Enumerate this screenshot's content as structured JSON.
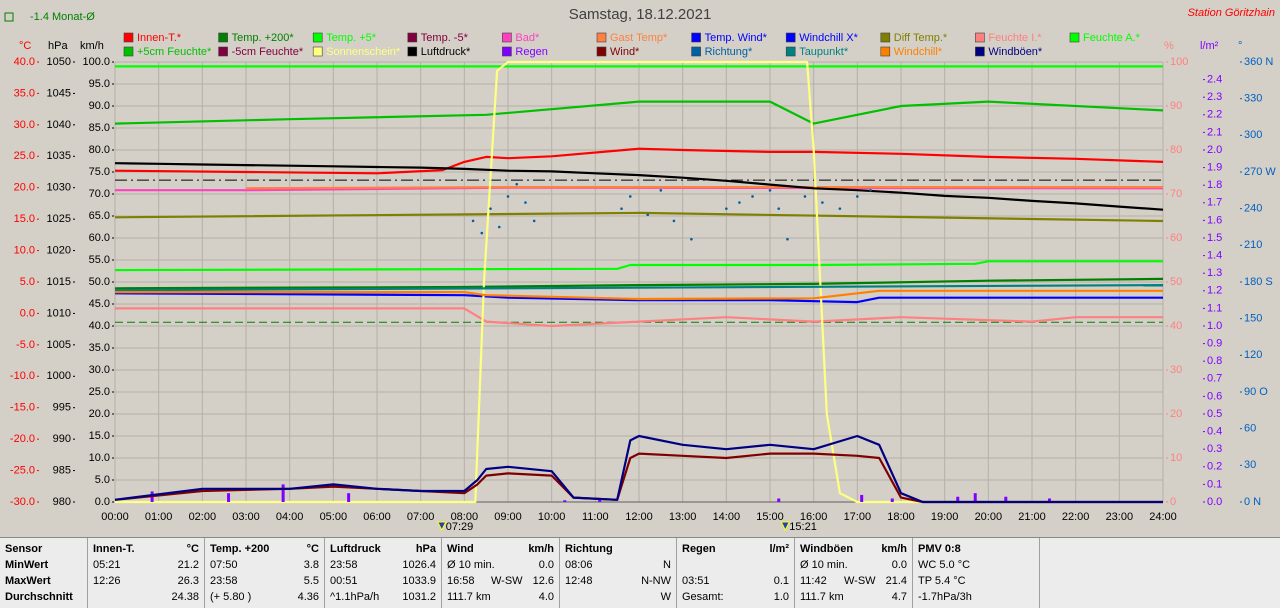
{
  "title": "Samstag, 18.12.2021",
  "station": "Station Göritzhain",
  "monthly_avg_label": "-1.4 Monat-Ø",
  "chart_data": {
    "type": "line",
    "grid": true,
    "grid_axis": 2,
    "y_axes": [
      {
        "label": "°C",
        "color": "#ff0000",
        "lim": [
          -30,
          40
        ],
        "ticks": [
          {
            "value": -30,
            "label": "-30.0"
          },
          {
            "value": -25,
            "label": "-25.0"
          },
          {
            "value": -20,
            "label": "-20.0"
          },
          {
            "value": -15,
            "label": "-15.0"
          },
          {
            "value": -10,
            "label": "-10.0"
          },
          {
            "value": -5,
            "label": "-5.0"
          },
          {
            "value": 0,
            "label": "0.0"
          },
          {
            "value": 5,
            "label": "5.0"
          },
          {
            "value": 10,
            "label": "10.0"
          },
          {
            "value": 15,
            "label": "15.0"
          },
          {
            "value": 20,
            "label": "20.0"
          },
          {
            "value": 25,
            "label": "25.0"
          },
          {
            "value": 30,
            "label": "30.0"
          },
          {
            "value": 35,
            "label": "35.0"
          },
          {
            "value": 40,
            "label": "40.0"
          }
        ]
      },
      {
        "label": "hPa",
        "color": "#000000",
        "lim": [
          980,
          1050
        ],
        "ticks": [
          980,
          985,
          990,
          995,
          1000,
          1005,
          1010,
          1015,
          1020,
          1025,
          1030,
          1035,
          1040,
          1045,
          1050
        ]
      },
      {
        "label": "km/h",
        "color": "#000000",
        "lim": [
          0,
          100
        ],
        "ticks": [
          {
            "value": 0,
            "label": "0.0"
          },
          {
            "value": 5,
            "label": "5.0"
          },
          {
            "value": 10,
            "label": "10.0"
          },
          {
            "value": 15,
            "label": "15.0"
          },
          {
            "value": 20,
            "label": "20.0"
          },
          {
            "value": 25,
            "label": "25.0"
          },
          {
            "value": 30,
            "label": "30.0"
          },
          {
            "value": 35,
            "label": "35.0"
          },
          {
            "value": 40,
            "label": "40.0"
          },
          {
            "value": 45,
            "label": "45.0"
          },
          {
            "value": 50,
            "label": "50.0"
          },
          {
            "value": 55,
            "label": "55.0"
          },
          {
            "value": 60,
            "label": "60.0"
          },
          {
            "value": 65,
            "label": "65.0"
          },
          {
            "value": 70,
            "label": "70.0"
          },
          {
            "value": 75,
            "label": "75.0"
          },
          {
            "value": 80,
            "label": "80.0"
          },
          {
            "value": 85,
            "label": "85.0"
          },
          {
            "value": 90,
            "label": "90.0"
          },
          {
            "value": 95,
            "label": "95.0"
          },
          {
            "value": 100,
            "label": "100.0"
          }
        ]
      },
      {
        "label": "%",
        "color": "#ff8080",
        "lim": [
          0,
          100
        ],
        "ticks": [
          0,
          10,
          20,
          30,
          40,
          50,
          60,
          70,
          80,
          90,
          100
        ]
      },
      {
        "label": "l/m²",
        "color": "#8000ff",
        "lim": [
          0,
          2.5
        ],
        "ticks": [
          {
            "value": 0,
            "label": "0.0"
          },
          0.1,
          0.2,
          0.3,
          0.4,
          0.5,
          0.6,
          0.7,
          0.8,
          0.9,
          {
            "value": 1,
            "label": "1.0"
          },
          1.1,
          1.2,
          1.3,
          1.4,
          1.5,
          1.6,
          1.7,
          1.8,
          1.9,
          {
            "value": 2,
            "label": "2.0"
          },
          2.1,
          2.2,
          2.3,
          2.4
        ]
      },
      {
        "label": "°",
        "color": "#0060c0",
        "lim": [
          0,
          360
        ],
        "ticks": [
          {
            "value": 0,
            "label": "0 N"
          },
          30,
          60,
          {
            "value": 90,
            "label": "90 O"
          },
          120,
          150,
          {
            "value": 180,
            "label": "180 S"
          },
          210,
          240,
          {
            "value": 270,
            "label": "270 W"
          },
          300,
          330,
          {
            "value": 360,
            "label": "360 N"
          }
        ]
      }
    ],
    "xlim": [
      0,
      24
    ],
    "xticks": [
      {
        "value": 0,
        "label": "00:00"
      },
      {
        "value": 1,
        "label": "01:00"
      },
      {
        "value": 2,
        "label": "02:00"
      },
      {
        "value": 3,
        "label": "03:00"
      },
      {
        "value": 4,
        "label": "04:00"
      },
      {
        "value": 5,
        "label": "05:00"
      },
      {
        "value": 6,
        "label": "06:00"
      },
      {
        "value": 7,
        "label": "07:00"
      },
      {
        "value": 8,
        "label": "08:00"
      },
      {
        "value": 9,
        "label": "09:00"
      },
      {
        "value": 10,
        "label": "10:00"
      },
      {
        "value": 11,
        "label": "11:00"
      },
      {
        "value": 12,
        "label": "12:00"
      },
      {
        "value": 13,
        "label": "13:00"
      },
      {
        "value": 14,
        "label": "14:00"
      },
      {
        "value": 15,
        "label": "15:00"
      },
      {
        "value": 16,
        "label": "16:00"
      },
      {
        "value": 17,
        "label": "17:00"
      },
      {
        "value": 18,
        "label": "18:00"
      },
      {
        "value": 19,
        "label": "19:00"
      },
      {
        "value": 20,
        "label": "20:00"
      },
      {
        "value": 21,
        "label": "21:00"
      },
      {
        "value": 22,
        "label": "22:00"
      },
      {
        "value": 23,
        "label": "23:00"
      },
      {
        "value": 24,
        "label": "24:00"
      }
    ],
    "annotations": [
      {
        "value": 7.4833,
        "label": "07:29"
      },
      {
        "value": 15.35,
        "label": "15:21"
      }
    ],
    "reference_lines": [
      {
        "axis": 0,
        "value": -1.4,
        "color": "#008000",
        "style": "dashed"
      },
      {
        "axis": 1,
        "value": 1031.2,
        "color": "#000000",
        "style": "dash-dot"
      }
    ],
    "series": [
      {
        "name": "Innen-T.*",
        "color": "#ff0000",
        "axis": 0,
        "style": "line",
        "x": [
          0,
          3,
          6,
          7.5,
          8,
          8.5,
          9,
          10,
          12,
          13,
          15,
          16,
          18,
          20,
          22,
          24
        ],
        "values": [
          22.7,
          22.5,
          22.3,
          22.8,
          24.1,
          24.9,
          24.7,
          25.0,
          26.2,
          26.0,
          25.7,
          25.7,
          25.4,
          24.9,
          24.6,
          24.1
        ]
      },
      {
        "name": "Temp. +200*",
        "color": "#008000",
        "axis": 0,
        "style": "line",
        "x": [
          0,
          8,
          12,
          16,
          20,
          24
        ],
        "values": [
          4.0,
          4.2,
          4.5,
          4.7,
          5.2,
          5.5
        ]
      },
      {
        "name": "Temp. +5*",
        "color": "#00ff00",
        "axis": 0,
        "style": "line",
        "x": [
          0,
          11.5,
          11.8,
          16,
          19.7,
          20,
          24
        ],
        "values": [
          6.9,
          7.1,
          7.7,
          7.7,
          7.9,
          8.3,
          8.3
        ]
      },
      {
        "name": "Temp. -5*",
        "color": "#800040",
        "axis": 0,
        "style": "line",
        "x": [],
        "values": []
      },
      {
        "name": "Bad*",
        "color": "#ff40c0",
        "axis": 0,
        "style": "line",
        "x": [
          0,
          3,
          9,
          24
        ],
        "values": [
          19.6,
          19.6,
          20.0,
          19.9
        ]
      },
      {
        "name": "Gast Temp*",
        "color": "#ff8040",
        "axis": 0,
        "style": "line",
        "x": [
          3,
          9,
          24
        ],
        "values": [
          19.9,
          20.1,
          20.1
        ]
      },
      {
        "name": "Temp. Wind*",
        "color": "#0000ff",
        "axis": 0,
        "style": "line",
        "x": [
          0,
          8,
          9,
          12,
          15,
          17,
          17.5,
          24
        ],
        "values": [
          3.2,
          2.9,
          2.5,
          2.1,
          2.1,
          1.8,
          2.5,
          2.5
        ]
      },
      {
        "name": "Windchill X*",
        "color": "#0000ff",
        "axis": 0,
        "style": "line",
        "x": [],
        "values": []
      },
      {
        "name": "Diff Temp.*",
        "color": "#808000",
        "axis": 0,
        "style": "line",
        "x": [
          0,
          12,
          24
        ],
        "values": [
          15.3,
          16.0,
          14.7
        ]
      },
      {
        "name": "Feuchte I.*",
        "color": "#ff8080",
        "axis": 3,
        "style": "line",
        "x": [
          0,
          8,
          8.5,
          10,
          12,
          14,
          16,
          18,
          21,
          22,
          24
        ],
        "values": [
          44,
          44,
          41,
          40,
          41,
          42,
          41,
          42,
          41,
          42,
          42
        ]
      },
      {
        "name": "Feuchte A.*",
        "color": "#00ff00",
        "axis": 3,
        "style": "line",
        "x": [
          0,
          24
        ],
        "values": [
          99,
          99
        ]
      },
      {
        "name": "+5cm Feuchte*",
        "color": "#00c000",
        "axis": 3,
        "style": "line",
        "x": [
          0,
          4,
          8.5,
          12,
          15,
          16,
          18,
          20,
          24
        ],
        "values": [
          86,
          87,
          88,
          91,
          91,
          86,
          90,
          91,
          89
        ]
      },
      {
        "name": "-5cm Feuchte*",
        "color": "#800040",
        "axis": 3,
        "style": "line",
        "x": [],
        "values": []
      },
      {
        "name": "Sonnenschein*",
        "color": "#ffff80",
        "axis": 3,
        "style": "line",
        "x": [
          0,
          8.25,
          8.45,
          8.75,
          9,
          15.85,
          16,
          16.3,
          16.6,
          17,
          24
        ],
        "values": [
          0,
          0,
          50,
          98,
          100,
          100,
          80,
          20,
          2,
          0,
          0
        ]
      },
      {
        "name": "Luftdruck*",
        "color": "#000000",
        "axis": 1,
        "style": "line",
        "x": [
          0,
          1,
          2,
          3,
          4,
          5,
          6,
          7,
          8,
          9,
          10,
          11,
          12,
          13,
          14,
          15,
          16,
          17,
          18,
          19,
          20,
          21,
          22,
          23,
          24
        ],
        "values": [
          1033.9,
          1033.8,
          1033.7,
          1033.6,
          1033.5,
          1033.4,
          1033.3,
          1033.2,
          1033.0,
          1032.7,
          1032.6,
          1032.3,
          1032.0,
          1031.6,
          1031.1,
          1030.5,
          1029.9,
          1029.6,
          1029.2,
          1028.7,
          1028.4,
          1027.9,
          1027.5,
          1027.0,
          1026.5
        ]
      },
      {
        "name": "Regen",
        "color": "#8000ff",
        "axis": 4,
        "style": "bars",
        "x": [
          0.85,
          2.6,
          3.85,
          5.35,
          10.3,
          11.1,
          15.2,
          17.1,
          17.8,
          19.3,
          19.7,
          20.4,
          21.4
        ],
        "values": [
          0.06,
          0.05,
          0.1,
          0.05,
          0.01,
          0.02,
          0.02,
          0.04,
          0.02,
          0.03,
          0.05,
          0.03,
          0.02
        ]
      },
      {
        "name": "Wind*",
        "color": "#800000",
        "axis": 2,
        "style": "line",
        "x": [
          0,
          2,
          4,
          5,
          6,
          7,
          8,
          8.3,
          8.5,
          9,
          10,
          10.5,
          11.5,
          11.8,
          12,
          13,
          14,
          15,
          16,
          17,
          17.5,
          18,
          18.5,
          24
        ],
        "values": [
          0.5,
          2.5,
          3,
          3.5,
          3,
          2.5,
          2,
          4,
          6,
          6.5,
          6,
          1,
          0.5,
          10,
          11,
          10.5,
          10,
          11,
          11,
          10.5,
          10,
          1,
          0,
          0
        ]
      },
      {
        "name": "Richtung*",
        "color": "#0060a0",
        "axis": 5,
        "style": "dots",
        "x": [
          8.2,
          8.4,
          8.6,
          8.8,
          9.0,
          9.2,
          9.4,
          9.6,
          11.6,
          11.8,
          12.2,
          12.5,
          12.8,
          13.2,
          14,
          14.3,
          14.6,
          15,
          15.2,
          15.4,
          15.8,
          16.2,
          16.6,
          17,
          17.3
        ],
        "values": [
          230,
          220,
          240,
          225,
          250,
          260,
          245,
          230,
          240,
          250,
          235,
          255,
          230,
          215,
          240,
          245,
          250,
          255,
          240,
          215,
          250,
          245,
          240,
          250,
          255
        ]
      },
      {
        "name": "Taupunkt*",
        "color": "#008080",
        "axis": 0,
        "style": "line",
        "x": [
          0,
          24
        ],
        "values": [
          3.7,
          4.5
        ]
      },
      {
        "name": "Windchill*",
        "color": "#ff8000",
        "axis": 0,
        "style": "line",
        "x": [
          0,
          8,
          8.5,
          12,
          16,
          17.5,
          24
        ],
        "values": [
          3.4,
          3.4,
          2.9,
          2.3,
          2.4,
          3.6,
          3.6
        ]
      },
      {
        "name": "Windböen*",
        "color": "#000080",
        "axis": 2,
        "style": "line",
        "x": [
          0,
          2,
          4,
          5,
          6,
          7,
          8,
          8.3,
          8.5,
          9,
          10,
          10.5,
          11.5,
          11.8,
          12,
          13,
          14,
          15,
          16,
          17,
          17.5,
          18,
          18.5,
          24
        ],
        "values": [
          0.5,
          3,
          3,
          4,
          3,
          2.5,
          2.5,
          5,
          7.5,
          8,
          7,
          1,
          0.5,
          14,
          15,
          13,
          12,
          13,
          12,
          15,
          13,
          2,
          0,
          0
        ]
      }
    ]
  },
  "table": {
    "header": {
      "label": "Sensor",
      "columns": [
        {
          "title": "Innen-T.",
          "unit": "°C"
        },
        {
          "title": "Temp. +200",
          "unit": "°C"
        },
        {
          "title": "Luftdruck",
          "unit": "hPa"
        },
        {
          "title": "Wind",
          "unit": "km/h"
        },
        {
          "title": "Richtung"
        },
        {
          "title": "Regen",
          "unit": "l/m²"
        },
        {
          "title": "Windböen",
          "unit": "km/h"
        },
        {
          "title": "PMV 0:8"
        }
      ]
    },
    "rows": [
      {
        "label": "MinWert",
        "cells": [
          {
            "left": "05:21",
            "right": "21.2"
          },
          {
            "left": "07:50",
            "right": "3.8"
          },
          {
            "left": "23:58",
            "right": "1026.4"
          },
          {
            "left": "Ø 10 min.",
            "right": "0.0"
          },
          {
            "left": "08:06",
            "right": "N"
          },
          {},
          {
            "left": "Ø 10 min.",
            "right": "0.0"
          },
          {
            "left": "WC 5.0 °C"
          }
        ]
      },
      {
        "label": "MaxWert",
        "cells": [
          {
            "left": "12:26",
            "right": "26.3"
          },
          {
            "left": "23:58",
            "right": "5.5"
          },
          {
            "left": "00:51",
            "right": "1033.9"
          },
          {
            "left": "16:58",
            "mid": "W-SW",
            "right": "12.6"
          },
          {
            "left": "12:48",
            "right": "N-NW"
          },
          {
            "left": "03:51",
            "right": "0.1"
          },
          {
            "left": "11:42",
            "mid": "W-SW",
            "right": "21.4"
          },
          {
            "left": "TP 5.4 °C"
          }
        ]
      },
      {
        "label": "Durchschnitt",
        "cells": [
          {
            "right": "24.38"
          },
          {
            "left": "(+ 5.80 )",
            "right": "4.36"
          },
          {
            "left": "^1.1hPa/h",
            "right": "1031.2"
          },
          {
            "left": "111.7 km",
            "right": "4.0"
          },
          {
            "right": "W"
          },
          {
            "left": "Gesamt:",
            "right": "1.0"
          },
          {
            "left": "111.7 km",
            "right": "4.7"
          },
          {
            "left": "-1.7hPa/3h"
          }
        ]
      }
    ]
  }
}
